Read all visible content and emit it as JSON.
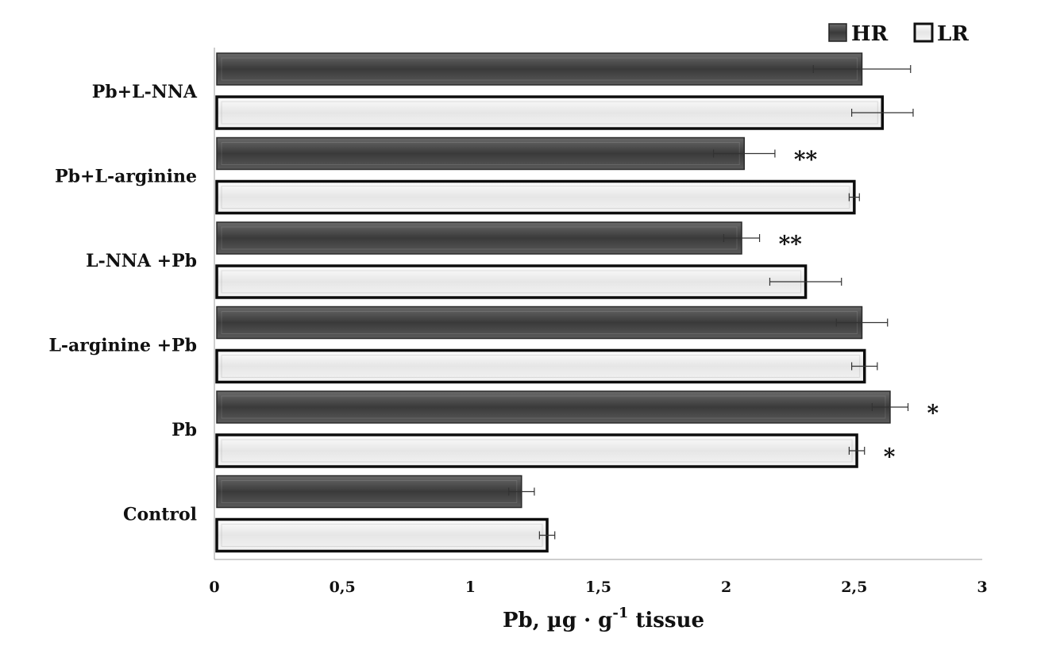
{
  "chart_data": {
    "type": "bar",
    "orientation": "horizontal",
    "categories": [
      "Pb+L-NNA",
      "Pb+L-arginine",
      "L-NNA +Pb",
      "L-arginine +Pb",
      "Pb",
      "Control"
    ],
    "series": [
      {
        "name": "HR",
        "color": "#4a4a4a",
        "values": [
          2.53,
          2.07,
          2.06,
          2.53,
          2.64,
          1.2
        ],
        "errors": [
          0.19,
          0.12,
          0.07,
          0.1,
          0.07,
          0.05
        ]
      },
      {
        "name": "LR",
        "color": "#eeeeee",
        "values": [
          2.61,
          2.5,
          2.31,
          2.54,
          2.51,
          1.3
        ],
        "errors": [
          0.12,
          0.02,
          0.14,
          0.05,
          0.03,
          0.03
        ]
      }
    ],
    "annotations": [
      {
        "category": "Pb+L-arginine",
        "series": "HR",
        "text": "**"
      },
      {
        "category": "L-NNA +Pb",
        "series": "HR",
        "text": "**"
      },
      {
        "category": "Pb",
        "series": "HR",
        "text": "*"
      },
      {
        "category": "Pb",
        "series": "LR",
        "text": "*"
      }
    ],
    "xlim": [
      0,
      3
    ],
    "xticks": [
      0,
      0.5,
      1,
      1.5,
      2,
      2.5,
      3
    ],
    "xtick_labels": [
      "0",
      "0,5",
      "1",
      "1,5",
      "2",
      "2,5",
      "3"
    ],
    "xlabel": {
      "main": "Pb, µg · g",
      "sup": "-1",
      "rest": " tissue"
    },
    "legend": {
      "position": "top-right",
      "entries": [
        "HR",
        "LR"
      ]
    },
    "grid": false
  }
}
